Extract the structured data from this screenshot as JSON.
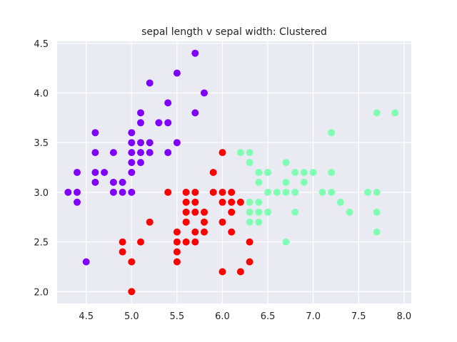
{
  "chart_data": {
    "type": "scatter",
    "title": "sepal length v sepal width: Clustered",
    "xlabel": "",
    "ylabel": "",
    "xlim": [
      4.18,
      8.08
    ],
    "ylim": [
      1.88,
      4.52
    ],
    "xticks": [
      4.5,
      5.0,
      5.5,
      6.0,
      6.5,
      7.0,
      7.5,
      8.0
    ],
    "xtick_labels": [
      "4.5",
      "5.0",
      "5.5",
      "6.0",
      "6.5",
      "7.0",
      "7.5",
      "8.0"
    ],
    "yticks": [
      2.0,
      2.5,
      3.0,
      3.5,
      4.0,
      4.5
    ],
    "ytick_labels": [
      "2.0",
      "2.5",
      "3.0",
      "3.5",
      "4.0",
      "4.5"
    ],
    "grid": true,
    "background": "#eaeaf2",
    "series": [
      {
        "color": "#8000ff",
        "points": [
          [
            4.3,
            3.0
          ],
          [
            4.4,
            2.9
          ],
          [
            4.4,
            3.0
          ],
          [
            4.4,
            3.2
          ],
          [
            4.5,
            2.3
          ],
          [
            4.6,
            3.1
          ],
          [
            4.6,
            3.2
          ],
          [
            4.6,
            3.4
          ],
          [
            4.6,
            3.6
          ],
          [
            4.7,
            3.2
          ],
          [
            4.8,
            3.0
          ],
          [
            4.8,
            3.1
          ],
          [
            4.8,
            3.4
          ],
          [
            4.9,
            3.0
          ],
          [
            4.9,
            3.1
          ],
          [
            5.0,
            3.0
          ],
          [
            5.0,
            3.2
          ],
          [
            5.0,
            3.3
          ],
          [
            5.0,
            3.4
          ],
          [
            5.0,
            3.5
          ],
          [
            5.0,
            3.6
          ],
          [
            5.1,
            3.3
          ],
          [
            5.1,
            3.4
          ],
          [
            5.1,
            3.5
          ],
          [
            5.1,
            3.7
          ],
          [
            5.1,
            3.8
          ],
          [
            5.2,
            3.4
          ],
          [
            5.2,
            3.5
          ],
          [
            5.2,
            4.1
          ],
          [
            5.3,
            3.7
          ],
          [
            5.4,
            3.4
          ],
          [
            5.4,
            3.7
          ],
          [
            5.4,
            3.9
          ],
          [
            5.5,
            3.5
          ],
          [
            5.5,
            4.2
          ],
          [
            5.7,
            3.8
          ],
          [
            5.7,
            4.4
          ],
          [
            5.8,
            4.0
          ]
        ]
      },
      {
        "color": "#ff0000",
        "points": [
          [
            4.9,
            2.4
          ],
          [
            4.9,
            2.5
          ],
          [
            5.0,
            2.0
          ],
          [
            5.0,
            2.3
          ],
          [
            5.1,
            2.5
          ],
          [
            5.2,
            2.7
          ],
          [
            5.4,
            3.0
          ],
          [
            5.5,
            2.3
          ],
          [
            5.5,
            2.4
          ],
          [
            5.5,
            2.5
          ],
          [
            5.5,
            2.6
          ],
          [
            5.6,
            2.5
          ],
          [
            5.6,
            2.7
          ],
          [
            5.6,
            2.8
          ],
          [
            5.6,
            2.9
          ],
          [
            5.6,
            3.0
          ],
          [
            5.7,
            2.5
          ],
          [
            5.7,
            2.6
          ],
          [
            5.7,
            2.8
          ],
          [
            5.7,
            2.9
          ],
          [
            5.7,
            3.0
          ],
          [
            5.8,
            2.6
          ],
          [
            5.8,
            2.7
          ],
          [
            5.8,
            2.8
          ],
          [
            5.9,
            3.0
          ],
          [
            5.9,
            3.2
          ],
          [
            6.0,
            2.2
          ],
          [
            6.0,
            2.7
          ],
          [
            6.0,
            2.9
          ],
          [
            6.0,
            3.0
          ],
          [
            6.0,
            3.4
          ],
          [
            6.1,
            2.6
          ],
          [
            6.1,
            2.8
          ],
          [
            6.1,
            2.9
          ],
          [
            6.1,
            3.0
          ],
          [
            6.2,
            2.2
          ],
          [
            6.2,
            2.9
          ],
          [
            6.3,
            2.3
          ],
          [
            6.3,
            2.5
          ]
        ]
      },
      {
        "color": "#80ffb4",
        "points": [
          [
            6.2,
            3.4
          ],
          [
            6.3,
            2.7
          ],
          [
            6.3,
            2.8
          ],
          [
            6.3,
            2.9
          ],
          [
            6.3,
            3.3
          ],
          [
            6.3,
            3.4
          ],
          [
            6.4,
            2.7
          ],
          [
            6.4,
            2.8
          ],
          [
            6.4,
            2.9
          ],
          [
            6.4,
            3.1
          ],
          [
            6.4,
            3.2
          ],
          [
            6.5,
            2.8
          ],
          [
            6.5,
            3.0
          ],
          [
            6.5,
            3.2
          ],
          [
            6.6,
            3.0
          ],
          [
            6.7,
            2.5
          ],
          [
            6.7,
            3.0
          ],
          [
            6.7,
            3.1
          ],
          [
            6.7,
            3.3
          ],
          [
            6.8,
            2.8
          ],
          [
            6.8,
            3.0
          ],
          [
            6.8,
            3.2
          ],
          [
            6.9,
            3.1
          ],
          [
            6.9,
            3.2
          ],
          [
            7.0,
            3.2
          ],
          [
            7.1,
            3.0
          ],
          [
            7.2,
            3.0
          ],
          [
            7.2,
            3.2
          ],
          [
            7.2,
            3.6
          ],
          [
            7.3,
            2.9
          ],
          [
            7.4,
            2.8
          ],
          [
            7.6,
            3.0
          ],
          [
            7.7,
            2.6
          ],
          [
            7.7,
            2.8
          ],
          [
            7.7,
            3.0
          ],
          [
            7.7,
            3.8
          ],
          [
            7.9,
            3.8
          ]
        ]
      }
    ]
  }
}
